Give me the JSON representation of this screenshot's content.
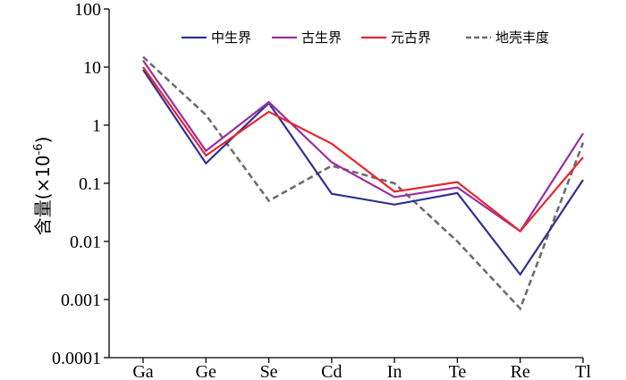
{
  "chart_data": {
    "type": "line",
    "title": "",
    "xlabel": "",
    "ylabel": "含量(×10",
    "ylabel_exponent": "-6",
    "ylabel_close": ")",
    "yscale": "log",
    "ylim": [
      0.0001,
      100
    ],
    "yticks": [
      0.0001,
      0.001,
      0.01,
      0.1,
      1,
      10,
      100
    ],
    "ytick_labels": [
      "0.0001",
      "0.001",
      "0.01",
      "0.1",
      "1",
      "10",
      "100"
    ],
    "categories": [
      "Ga",
      "Ge",
      "Se",
      "Cd",
      "In",
      "Te",
      "Re",
      "Tl"
    ],
    "legend_position": "top-right",
    "grid": false,
    "series": [
      {
        "name": "中生界",
        "color": "#2e3192",
        "dash": "solid",
        "values": [
          9.0,
          0.22,
          2.4,
          0.066,
          0.043,
          0.068,
          0.0027,
          0.115
        ]
      },
      {
        "name": "古生界",
        "color": "#9b2d9f",
        "dash": "solid",
        "values": [
          13.0,
          0.36,
          2.5,
          0.23,
          0.058,
          0.085,
          0.015,
          0.72
        ]
      },
      {
        "name": "元古界",
        "color": "#e8262b",
        "dash": "solid",
        "values": [
          10.0,
          0.3,
          1.7,
          0.48,
          0.072,
          0.105,
          0.015,
          0.28
        ]
      },
      {
        "name": "地壳丰度",
        "color": "#6d6d6d",
        "dash": "dashed",
        "values": [
          15.0,
          1.5,
          0.05,
          0.2,
          0.1,
          0.01,
          0.0007,
          0.5
        ]
      }
    ]
  }
}
